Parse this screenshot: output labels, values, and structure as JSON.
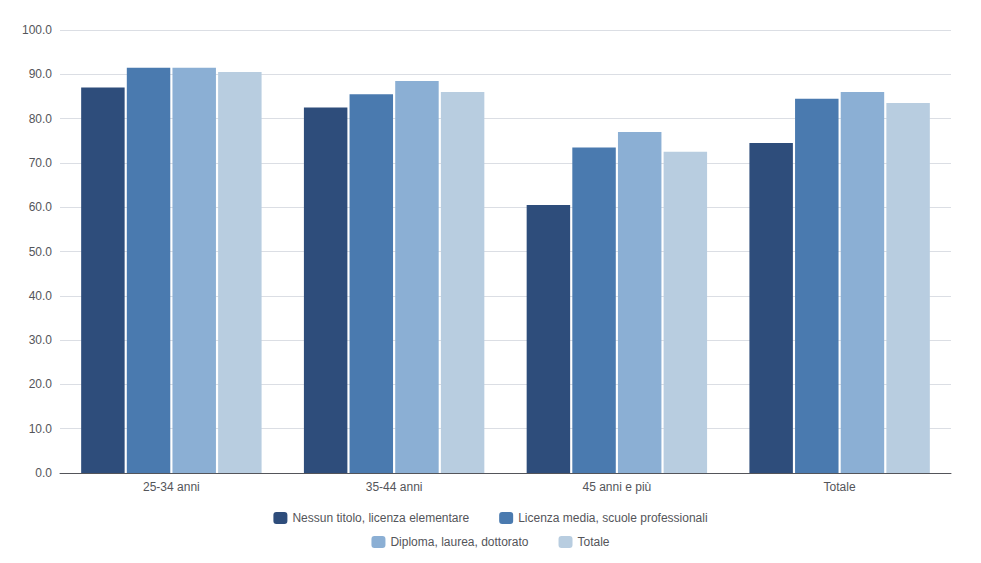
{
  "chart_data": {
    "type": "bar",
    "categories": [
      "25-34 anni",
      "35-44 anni",
      "45 anni e più",
      "Totale"
    ],
    "series": [
      {
        "name": "Nessun titolo, licenza elementare",
        "color": "#2E4D7B",
        "values": [
          87.0,
          82.5,
          60.5,
          74.5
        ]
      },
      {
        "name": "Licenza media, scuole professionali",
        "color": "#4A7AAF",
        "values": [
          91.5,
          85.5,
          73.5,
          84.5
        ]
      },
      {
        "name": "Diploma, laurea, dottorato",
        "color": "#8BAFD4",
        "values": [
          91.5,
          88.5,
          77.0,
          86.0
        ]
      },
      {
        "name": "Totale",
        "color": "#B8CDE0",
        "values": [
          90.5,
          86.0,
          72.5,
          83.5
        ]
      }
    ],
    "ylim": [
      0,
      100
    ],
    "yticks": [
      {
        "value": 0,
        "label": "0.0"
      },
      {
        "value": 10,
        "label": "10.0"
      },
      {
        "value": 20,
        "label": "20.0"
      },
      {
        "value": 30,
        "label": "30.0"
      },
      {
        "value": 40,
        "label": "40.0"
      },
      {
        "value": 50,
        "label": "50.0"
      },
      {
        "value": 60,
        "label": "60.0"
      },
      {
        "value": 70,
        "label": "70.0"
      },
      {
        "value": 80,
        "label": "80.0"
      },
      {
        "value": 90,
        "label": "90.0"
      },
      {
        "value": 100,
        "label": "100.0"
      }
    ],
    "grid": true,
    "legend": "bottom"
  }
}
